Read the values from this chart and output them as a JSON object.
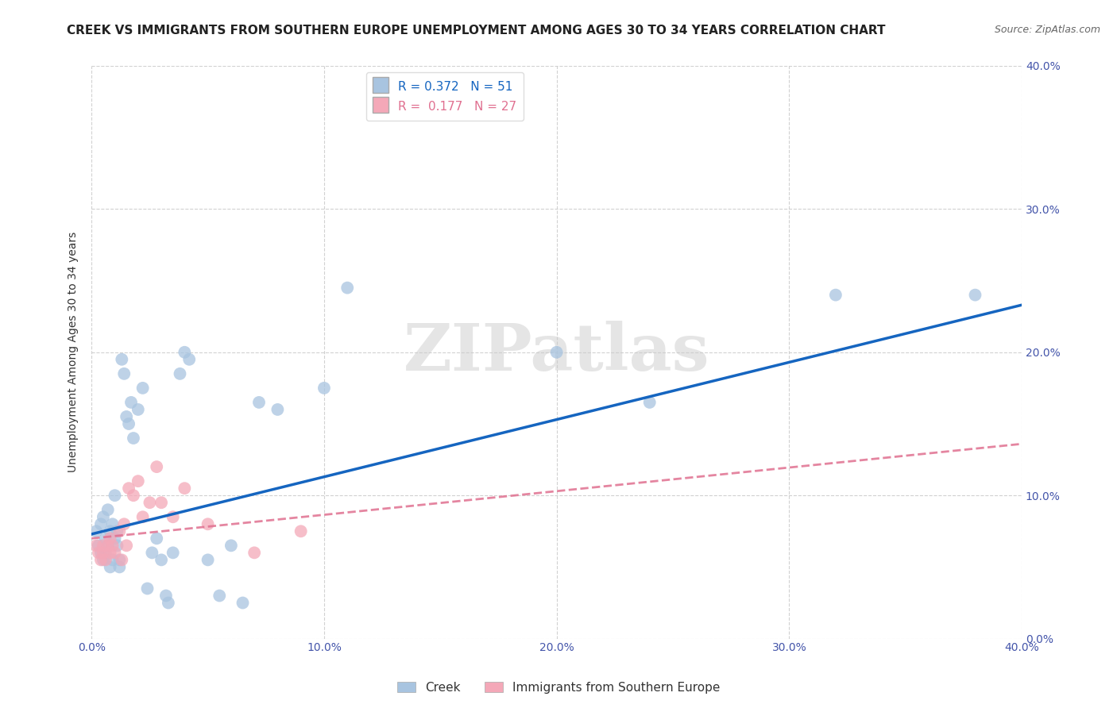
{
  "title": "CREEK VS IMMIGRANTS FROM SOUTHERN EUROPE UNEMPLOYMENT AMONG AGES 30 TO 34 YEARS CORRELATION CHART",
  "source": "Source: ZipAtlas.com",
  "ylabel": "Unemployment Among Ages 30 to 34 years",
  "xlim": [
    0,
    0.4
  ],
  "ylim": [
    0,
    0.4
  ],
  "xtick_labels": [
    "0.0%",
    "10.0%",
    "20.0%",
    "30.0%",
    "40.0%"
  ],
  "xtick_vals": [
    0.0,
    0.1,
    0.2,
    0.3,
    0.4
  ],
  "ytick_vals": [
    0.0,
    0.1,
    0.2,
    0.3,
    0.4
  ],
  "ytick_labels_right": [
    "0.0%",
    "10.0%",
    "20.0%",
    "30.0%",
    "40.0%"
  ],
  "watermark": "ZIPatlas",
  "blue_R": "0.372",
  "blue_N": "51",
  "pink_R": "0.177",
  "pink_N": "27",
  "blue_color": "#a8c4e0",
  "pink_color": "#f4a8b8",
  "blue_line_color": "#1565C0",
  "pink_line_color": "#E07090",
  "legend_label_creek": "Creek",
  "legend_label_immigrants": "Immigrants from Southern Europe",
  "blue_points_x": [
    0.002,
    0.003,
    0.004,
    0.004,
    0.005,
    0.005,
    0.006,
    0.006,
    0.007,
    0.007,
    0.008,
    0.008,
    0.009,
    0.009,
    0.01,
    0.01,
    0.011,
    0.011,
    0.012,
    0.012,
    0.013,
    0.014,
    0.015,
    0.016,
    0.017,
    0.018,
    0.02,
    0.022,
    0.024,
    0.026,
    0.028,
    0.03,
    0.032,
    0.033,
    0.035,
    0.038,
    0.04,
    0.042,
    0.05,
    0.055,
    0.06,
    0.065,
    0.072,
    0.08,
    0.1,
    0.11,
    0.15,
    0.2,
    0.24,
    0.32,
    0.38
  ],
  "blue_points_y": [
    0.075,
    0.065,
    0.08,
    0.06,
    0.085,
    0.055,
    0.07,
    0.06,
    0.09,
    0.065,
    0.075,
    0.05,
    0.08,
    0.055,
    0.1,
    0.07,
    0.075,
    0.065,
    0.055,
    0.05,
    0.195,
    0.185,
    0.155,
    0.15,
    0.165,
    0.14,
    0.16,
    0.175,
    0.035,
    0.06,
    0.07,
    0.055,
    0.03,
    0.025,
    0.06,
    0.185,
    0.2,
    0.195,
    0.055,
    0.03,
    0.065,
    0.025,
    0.165,
    0.16,
    0.175,
    0.245,
    0.375,
    0.2,
    0.165,
    0.24,
    0.24
  ],
  "pink_points_x": [
    0.002,
    0.003,
    0.004,
    0.005,
    0.005,
    0.006,
    0.007,
    0.008,
    0.008,
    0.009,
    0.01,
    0.012,
    0.013,
    0.014,
    0.015,
    0.016,
    0.018,
    0.02,
    0.022,
    0.025,
    0.028,
    0.03,
    0.035,
    0.04,
    0.05,
    0.07,
    0.09
  ],
  "pink_points_y": [
    0.065,
    0.06,
    0.055,
    0.065,
    0.06,
    0.055,
    0.065,
    0.06,
    0.07,
    0.065,
    0.06,
    0.075,
    0.055,
    0.08,
    0.065,
    0.105,
    0.1,
    0.11,
    0.085,
    0.095,
    0.12,
    0.095,
    0.085,
    0.105,
    0.08,
    0.06,
    0.075
  ],
  "blue_line_intercept": 0.073,
  "blue_line_slope": 0.4,
  "pink_line_intercept": 0.07,
  "pink_line_slope": 0.165,
  "grid_color": "#cccccc",
  "background_color": "#ffffff",
  "title_fontsize": 11,
  "axis_label_fontsize": 10,
  "tick_fontsize": 10,
  "source_fontsize": 9,
  "legend_fontsize": 11
}
